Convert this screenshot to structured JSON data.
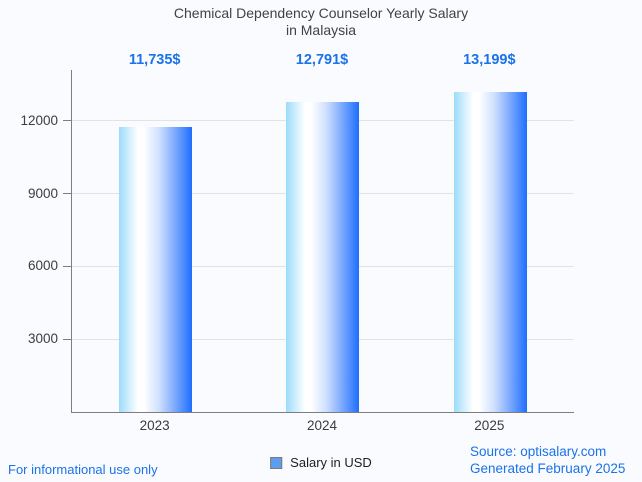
{
  "page": {
    "background": "#fafbfe",
    "footer_left": "For informational use only",
    "source_line1": "Source: optisalary.com",
    "source_line2": "Generated February 2025"
  },
  "chart_data": {
    "type": "bar",
    "title_line1": "Chemical Dependency Counselor Yearly Salary",
    "title_line2": "in Malaysia",
    "categories": [
      "2023",
      "2024",
      "2025"
    ],
    "values": [
      11735,
      12791,
      13199
    ],
    "annotations": [
      "11,735$",
      "12,791$",
      "13,199$"
    ],
    "series_name": "Salary in USD",
    "xlabel": "",
    "ylabel": "",
    "yticks": [
      3000,
      6000,
      9000,
      12000
    ],
    "ylim": [
      0,
      14100
    ],
    "grid": true,
    "legend_position": "bottom",
    "colors": {
      "annotation": "#1a73e8",
      "title_text": "#424242",
      "axis_text": "#3c3c3c",
      "gridline": "#e3e3e3",
      "axis_line": "#7e7e7e",
      "legend_swatch": "#5e9cee",
      "footer_link": "#1a73e8",
      "bar_gradient": [
        "#9cdcfa",
        "#ffffff",
        "#ffffff",
        "#cfe0fe",
        "#7fabfd",
        "#1e6ffe"
      ]
    }
  }
}
